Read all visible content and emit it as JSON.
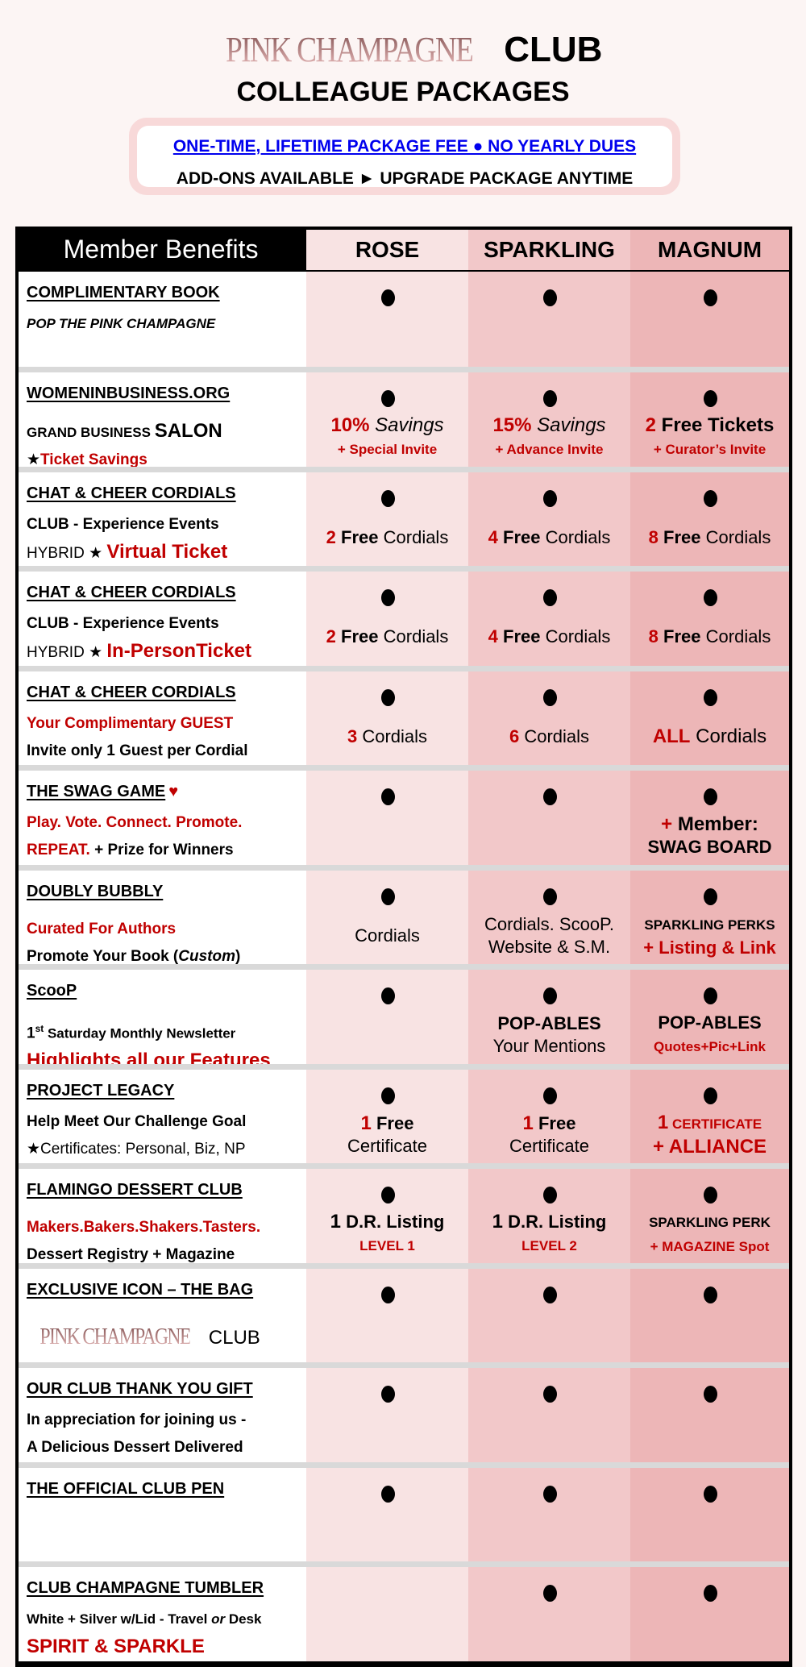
{
  "header": {
    "brand": "PINK CHAMPAGNE",
    "brand_suffix": "CLUB",
    "subtitle": "COLLEAGUE PACKAGES",
    "notice_link": "ONE-TIME, LIFETIME PACKAGE FEE ● NO YEARLY DUES",
    "notice_text": "ADD-ONS AVAILABLE  ► UPGRADE PACKAGE ANYTIME"
  },
  "colors": {
    "accent_red": "#c00000",
    "rose": "#f8e3e3",
    "sparkling": "#f2c8c9",
    "magnum": "#edb6b7",
    "link_blue": "#0000ee"
  },
  "table": {
    "label_header": "Member Benefits",
    "columns": [
      "ROSE",
      "SPARKLING",
      "MAGNUM"
    ],
    "rows": [
      {
        "heading": "COMPLIMENTARY BOOK",
        "lines": [
          [
            {
              "t": "POP THE PINK CHAMPAGNE",
              "s": "b i sm"
            }
          ]
        ],
        "dots": [
          true,
          true,
          true
        ],
        "values": [
          [],
          [],
          []
        ]
      },
      {
        "heading": "WOMENINBUSINESS.ORG",
        "lines": [
          [
            {
              "t": "GRAND BUSINESS ",
              "s": "b sm"
            },
            {
              "t": "SALON",
              "s": "b lg"
            }
          ],
          [
            {
              "t": "★",
              "s": ""
            },
            {
              "t": "Ticket Savings",
              "s": "b red"
            }
          ]
        ],
        "dots": [
          true,
          true,
          true
        ],
        "values": [
          [
            [
              {
                "t": "10%",
                "s": "b red lg"
              },
              {
                "t": " Savings",
                "s": "i lg"
              }
            ],
            [
              {
                "t": "+ Special Invite",
                "s": "b red sm"
              }
            ]
          ],
          [
            [
              {
                "t": "15%",
                "s": "b red lg"
              },
              {
                "t": " Savings",
                "s": "i lg"
              }
            ],
            [
              {
                "t": "+ Advance Invite",
                "s": "b red sm"
              }
            ]
          ],
          [
            [
              {
                "t": "2",
                "s": "b red lg"
              },
              {
                "t": " Free Tickets",
                "s": "b lg"
              }
            ],
            [
              {
                "t": "+ Curator’s Invite",
                "s": "b red sm"
              }
            ]
          ]
        ]
      },
      {
        "heading": "CHAT & CHEER CORDIALS",
        "lines": [
          [
            {
              "t": "CLUB  -  Experience Events",
              "s": "b"
            }
          ],
          [
            {
              "t": "HYBRID ★ ",
              "s": ""
            },
            {
              "t": "Virtual Ticket",
              "s": "b red lg"
            }
          ]
        ],
        "dots": [
          true,
          true,
          true
        ],
        "values": [
          [
            [
              {
                "t": "2",
                "s": "b red"
              },
              {
                "t": " Free",
                "s": "b"
              },
              {
                "t": " Cordials",
                "s": ""
              }
            ]
          ],
          [
            [
              {
                "t": "4",
                "s": "b red"
              },
              {
                "t": " Free",
                "s": "b"
              },
              {
                "t": " Cordials",
                "s": ""
              }
            ]
          ],
          [
            [
              {
                "t": "8",
                "s": "b red"
              },
              {
                "t": " Free",
                "s": "b"
              },
              {
                "t": " Cordials",
                "s": ""
              }
            ]
          ]
        ]
      },
      {
        "heading": "CHAT & CHEER CORDIALS",
        "lines": [
          [
            {
              "t": "CLUB  -  Experience Events",
              "s": "b"
            }
          ],
          [
            {
              "t": "HYBRID ★ ",
              "s": ""
            },
            {
              "t": "In-PersonTicket",
              "s": "b red lg"
            }
          ]
        ],
        "dots": [
          true,
          true,
          true
        ],
        "values": [
          [
            [
              {
                "t": "2",
                "s": "b red"
              },
              {
                "t": " Free",
                "s": "b"
              },
              {
                "t": " Cordials",
                "s": ""
              }
            ]
          ],
          [
            [
              {
                "t": "4",
                "s": "b red"
              },
              {
                "t": " Free",
                "s": "b"
              },
              {
                "t": " Cordials",
                "s": ""
              }
            ]
          ],
          [
            [
              {
                "t": "8",
                "s": "b red"
              },
              {
                "t": " Free",
                "s": "b"
              },
              {
                "t": " Cordials",
                "s": ""
              }
            ]
          ]
        ]
      },
      {
        "heading": "CHAT & CHEER CORDIALS",
        "lines": [
          [
            {
              "t": "Your Complimentary GUEST",
              "s": "b red"
            }
          ],
          [
            {
              "t": "Invite only 1 Guest per Cordial",
              "s": "b"
            }
          ]
        ],
        "dots": [
          true,
          true,
          true
        ],
        "values": [
          [
            [
              {
                "t": "3",
                "s": "b red"
              },
              {
                "t": " Cordials",
                "s": ""
              }
            ]
          ],
          [
            [
              {
                "t": "6",
                "s": "b red"
              },
              {
                "t": " Cordials",
                "s": ""
              }
            ]
          ],
          [
            [
              {
                "t": "ALL",
                "s": "b red lg"
              },
              {
                "t": " Cordials",
                "s": "lg"
              }
            ]
          ]
        ]
      },
      {
        "heading": "THE SWAG GAME",
        "heading_icon": "♥",
        "lines": [
          [
            {
              "t": "Play. Vote. Connect. Promote.",
              "s": "b red"
            }
          ],
          [
            {
              "t": "REPEAT.",
              "s": "b red"
            },
            {
              "t": "   + Prize for Winners",
              "s": "b"
            }
          ]
        ],
        "dots": [
          true,
          true,
          true
        ],
        "values": [
          [],
          [],
          [
            [
              {
                "t": "+",
                "s": "b red lg"
              },
              {
                "t": " Member:",
                "s": "b lg"
              }
            ],
            [
              {
                "t": "SWAG BOARD",
                "s": "b"
              }
            ]
          ]
        ]
      },
      {
        "heading": "DOUBLY BUBBLY",
        "lines": [
          [
            {
              "t": "Curated For Authors",
              "s": "b red"
            }
          ],
          [
            {
              "t": "Promote Your Book (",
              "s": "b"
            },
            {
              "t": "Custom",
              "s": "b i"
            },
            {
              "t": ")",
              "s": "b"
            }
          ]
        ],
        "dots": [
          true,
          true,
          true
        ],
        "values": [
          [
            [
              {
                "t": "Cordials",
                "s": ""
              }
            ]
          ],
          [
            [
              {
                "t": "Cordials. ScooP.",
                "s": ""
              }
            ],
            [
              {
                "t": "Website & S.M.",
                "s": ""
              }
            ]
          ],
          [
            [
              {
                "t": "SPARKLING PERKS",
                "s": "b sm"
              }
            ],
            [
              {
                "t": "+ Listing & Link",
                "s": "b red"
              }
            ]
          ]
        ]
      },
      {
        "heading": "ScooP",
        "lines": [
          [
            {
              "t": "1",
              "s": "b"
            },
            {
              "t": "st",
              "s": "b sup"
            },
            {
              "t": " Saturday Monthly Newsletter",
              "s": "b sm"
            }
          ],
          [
            {
              "t": "Highlights all our Features",
              "s": "b red lg"
            }
          ]
        ],
        "dots": [
          true,
          true,
          true
        ],
        "values": [
          [],
          [
            [
              {
                "t": "POP-ABLES",
                "s": "b"
              }
            ],
            [
              {
                "t": "Your Mentions",
                "s": ""
              }
            ]
          ],
          [
            [
              {
                "t": "POP-ABLES",
                "s": "b"
              }
            ],
            [
              {
                "t": "Quotes+Pic+Link",
                "s": "b red sm"
              }
            ]
          ]
        ]
      },
      {
        "heading": "PROJECT LEGACY",
        "lines": [
          [
            {
              "t": "Help Meet Our Challenge Goal",
              "s": "b"
            }
          ],
          [
            {
              "t": "★Certificates: Personal, Biz, NP",
              "s": ""
            }
          ]
        ],
        "dots": [
          true,
          true,
          true
        ],
        "values": [
          [
            [
              {
                "t": "1",
                "s": "b red lg"
              },
              {
                "t": " Free",
                "s": "b"
              }
            ],
            [
              {
                "t": "Certificate",
                "s": ""
              }
            ]
          ],
          [
            [
              {
                "t": "1",
                "s": "b red lg"
              },
              {
                "t": " Free",
                "s": "b"
              }
            ],
            [
              {
                "t": "Certificate",
                "s": ""
              }
            ]
          ],
          [
            [
              {
                "t": "1",
                "s": "b red lg"
              },
              {
                "t": " CERTIFICATE",
                "s": "b red sm"
              }
            ],
            [
              {
                "t": "+ ALLIANCE",
                "s": "b red lg"
              }
            ]
          ]
        ]
      },
      {
        "heading": "FLAMINGO DESSERT CLUB",
        "lines": [
          [
            {
              "t": "Makers.Bakers.Shakers.Tasters.",
              "s": "b red"
            }
          ],
          [
            {
              "t": "Dessert Registry + Magazine",
              "s": "b"
            }
          ]
        ],
        "dots": [
          true,
          true,
          true
        ],
        "values": [
          [
            [
              {
                "t": "1",
                "s": "b lg"
              },
              {
                "t": " D.R. Listing",
                "s": "b"
              }
            ],
            [
              {
                "t": "LEVEL 1",
                "s": "b red sm"
              }
            ]
          ],
          [
            [
              {
                "t": "1",
                "s": "b lg"
              },
              {
                "t": " D.R. Listing",
                "s": "b"
              }
            ],
            [
              {
                "t": "LEVEL 2",
                "s": "b red sm"
              }
            ]
          ],
          [
            [
              {
                "t": "SPARKLING PERK",
                "s": "b sm"
              }
            ],
            [
              {
                "t": "+ MAGAZINE Spot",
                "s": "b red sm"
              }
            ]
          ]
        ]
      },
      {
        "heading": "EXCLUSIVE ICON – THE BAG",
        "lines": [
          [
            {
              "t": "PINK CHAMPAGNE",
              "s": "brand"
            },
            {
              "t": " CLUB",
              "s": "lg"
            }
          ]
        ],
        "dots": [
          true,
          true,
          true
        ],
        "values": [
          [],
          [],
          []
        ]
      },
      {
        "heading": "OUR CLUB THANK YOU GIFT",
        "lines": [
          [
            {
              "t": "In appreciation for joining us -",
              "s": "b"
            }
          ],
          [
            {
              "t": "A Delicious Dessert Delivered",
              "s": "b"
            }
          ]
        ],
        "dots": [
          true,
          true,
          true
        ],
        "values": [
          [],
          [],
          []
        ]
      },
      {
        "heading": "THE OFFICIAL CLUB PEN",
        "lines": [],
        "dots": [
          true,
          true,
          true
        ],
        "values": [
          [],
          [],
          []
        ]
      },
      {
        "heading": "CLUB CHAMPAGNE TUMBLER",
        "lines": [
          [
            {
              "t": "White + Silver w/Lid - Travel ",
              "s": "b sm"
            },
            {
              "t": "or",
              "s": "b i sm"
            },
            {
              "t": " Desk",
              "s": "b sm"
            }
          ],
          [
            {
              "t": "SPIRIT & SPARKLE",
              "s": "b red lg"
            }
          ]
        ],
        "dots": [
          false,
          true,
          true
        ],
        "values": [
          [],
          [],
          []
        ]
      }
    ]
  }
}
